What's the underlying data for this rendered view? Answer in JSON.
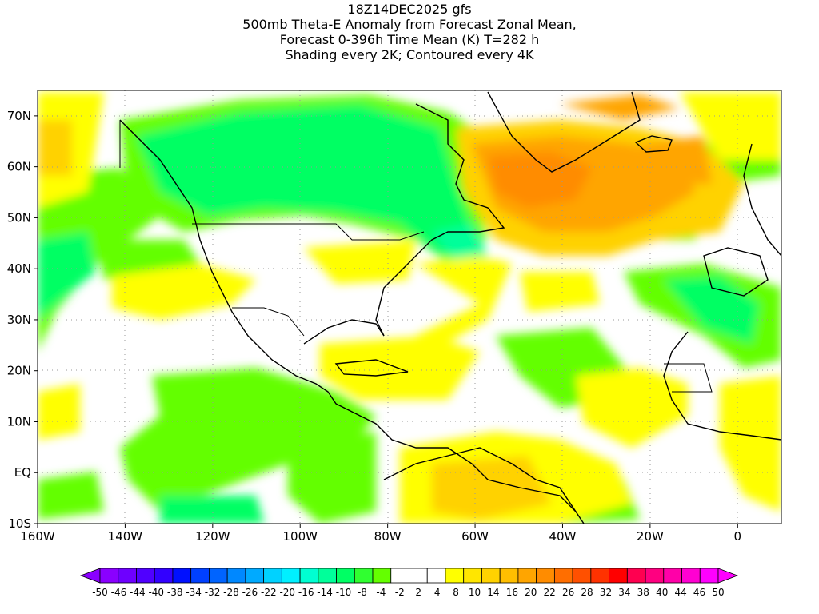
{
  "title": {
    "line1": "18Z14DEC2025 gfs",
    "line2": "500mb Theta-E Anomaly from Forecast Zonal Mean,",
    "line3": "Forecast 0-396h Time Mean (K) T=282 h",
    "line4": "Shading every 2K; Contoured every 4K"
  },
  "map": {
    "lat_labels": [
      "70N",
      "60N",
      "50N",
      "40N",
      "30N",
      "20N",
      "10N",
      "EQ",
      "10S"
    ],
    "lon_labels": [
      "160W",
      "140W",
      "120W",
      "100W",
      "80W",
      "60W",
      "40W",
      "20W",
      "0"
    ],
    "lat_range": [
      -10,
      75
    ],
    "lon_range": [
      -160,
      10
    ]
  },
  "colorbar": {
    "labels": [
      "-50",
      "-46",
      "-44",
      "-40",
      "-38",
      "-34",
      "-32",
      "-28",
      "-26",
      "-22",
      "-20",
      "-16",
      "-14",
      "-10",
      "-8",
      "-4",
      "-2",
      "2",
      "4",
      "8",
      "10",
      "14",
      "16",
      "20",
      "22",
      "26",
      "28",
      "32",
      "34",
      "38",
      "40",
      "44",
      "46",
      "50"
    ],
    "colors": [
      "#8a00ff",
      "#6e00ff",
      "#5000ff",
      "#3200ff",
      "#0010ff",
      "#0040ff",
      "#0064ff",
      "#0088ff",
      "#00aaff",
      "#00d2ff",
      "#00f0ff",
      "#00ffd2",
      "#00ff9a",
      "#00ff64",
      "#30ff30",
      "#64ff00",
      "#ffffff",
      "#ffffff",
      "#ffffff",
      "#ffff00",
      "#ffe600",
      "#ffd200",
      "#ffbe00",
      "#ffa500",
      "#ff8c00",
      "#ff6e00",
      "#ff5000",
      "#ff3200",
      "#ff0000",
      "#ff0050",
      "#ff0080",
      "#ff00a8",
      "#ff00d2",
      "#ff00ff"
    ]
  }
}
